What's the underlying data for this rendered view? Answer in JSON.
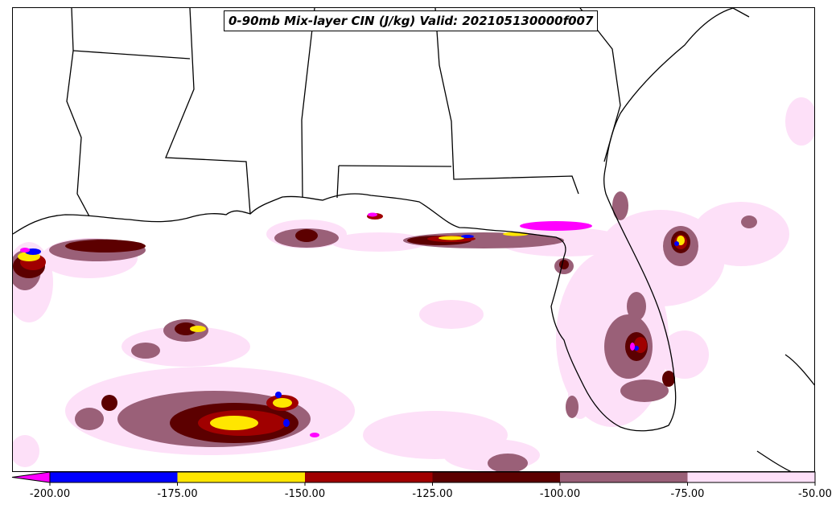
{
  "map": {
    "title": "0-90mb Mix-layer CIN (J/kg) Valid: 202105130000f007",
    "region": "Gulf of Mexico and southeastern United States",
    "variable": "0-90mb Mix-layer CIN",
    "units": "J/kg"
  },
  "colorbar": {
    "extend": "min",
    "levels": [
      {
        "min": null,
        "max": -200,
        "color": "#ff00ff",
        "label": "< -200"
      },
      {
        "min": -200,
        "max": -175,
        "color": "#0000ff"
      },
      {
        "min": -175,
        "max": -150,
        "color": "#ffe600"
      },
      {
        "min": -150,
        "max": -125,
        "color": "#a00000"
      },
      {
        "min": -125,
        "max": -100,
        "color": "#5c0000"
      },
      {
        "min": -100,
        "max": -75,
        "color": "#9a6078"
      },
      {
        "min": -75,
        "max": -50,
        "color": "#fde0f8"
      }
    ],
    "ticks": [
      "-200.00",
      "-175.00",
      "-150.00",
      "-125.00",
      "-100.00",
      "-75.00",
      "-50.00"
    ]
  },
  "fill_colors": {
    "cin_minus_50": "#fde0f8",
    "cin_minus_75": "#9a6078",
    "cin_minus_100": "#5c0000",
    "cin_minus_125": "#a00000",
    "cin_minus_150": "#ffe600",
    "cin_minus_175": "#0000ff",
    "cin_minus_200": "#ff00ff"
  }
}
